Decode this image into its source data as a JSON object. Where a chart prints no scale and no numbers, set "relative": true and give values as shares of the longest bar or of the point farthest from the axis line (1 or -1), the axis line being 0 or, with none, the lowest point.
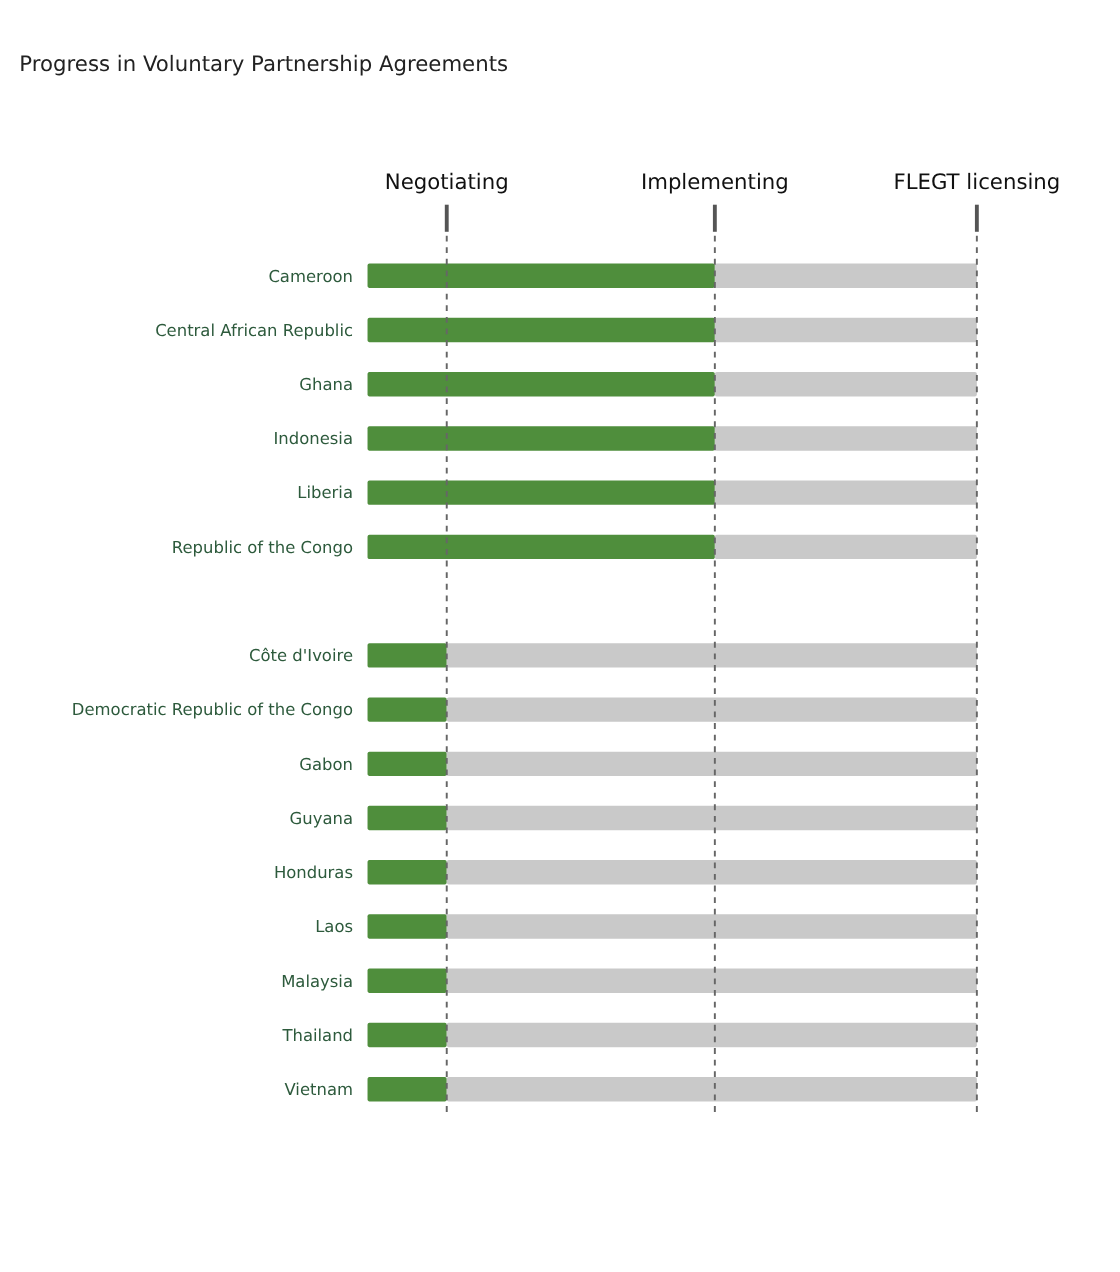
{
  "chart_data": {
    "type": "bar",
    "orientation": "horizontal",
    "stacked": true,
    "relative": true,
    "title": "Progress in Voluntary Partnership Agreements",
    "categories": [
      "Cameroon",
      "Central African Republic",
      "Ghana",
      "Indonesia",
      "Liberia",
      "Republic of the Congo",
      null,
      "Côte d'Ivoire",
      "Democratic Republic of the Congo",
      "Gabon",
      "Guyana",
      "Honduras",
      "Laos",
      "Malaysia",
      "Thailand",
      "Vietnam"
    ],
    "series": [
      {
        "color": "#4f8e3c",
        "values": [
          0.57,
          0.57,
          0.57,
          0.57,
          0.57,
          0.57,
          null,
          0.13,
          0.13,
          0.13,
          0.13,
          0.13,
          0.13,
          0.13,
          0.13,
          0.13
        ]
      },
      {
        "color": "#c9c9c9",
        "values": [
          0.43,
          0.43,
          0.43,
          0.43,
          0.43,
          0.43,
          null,
          0.87,
          0.87,
          0.87,
          0.87,
          0.87,
          0.87,
          0.87,
          0.87,
          0.87
        ]
      }
    ],
    "ref_lines": [
      {
        "axis": "x",
        "value": 0.13,
        "label": "Negotiating",
        "color": "#666666",
        "line_style": "dashed"
      },
      {
        "axis": "x",
        "value": 0.57,
        "label": "Implementing",
        "color": "#666666",
        "line_style": "dashed"
      },
      {
        "axis": "x",
        "value": 1.0,
        "label": "FLEGT licensing",
        "color": "#666666",
        "line_style": "dashed"
      }
    ],
    "grid": false
  }
}
